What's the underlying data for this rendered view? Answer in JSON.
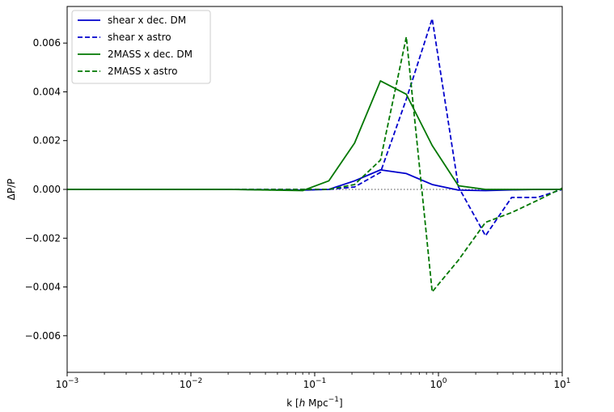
{
  "chart_data": {
    "type": "line",
    "xscale": "log",
    "xlim": [
      0.001,
      10
    ],
    "ylim": [
      -0.0075,
      0.0075
    ],
    "xlabel_parts": [
      "k [",
      "h",
      " Mpc",
      "−1",
      "]"
    ],
    "ylabel": "ΔP/P",
    "xticks": [
      {
        "value": 0.001,
        "base": "10",
        "exp": "−3"
      },
      {
        "value": 0.01,
        "base": "10",
        "exp": "−2"
      },
      {
        "value": 0.1,
        "base": "10",
        "exp": "−1"
      },
      {
        "value": 1,
        "base": "10",
        "exp": "0"
      },
      {
        "value": 10,
        "base": "10",
        "exp": "1"
      }
    ],
    "yticks": [
      {
        "value": 0.006,
        "label": "0.006"
      },
      {
        "value": 0.004,
        "label": "0.004"
      },
      {
        "value": 0.002,
        "label": "0.002"
      },
      {
        "value": 0.0,
        "label": "0.000"
      },
      {
        "value": -0.002,
        "label": "−0.002"
      },
      {
        "value": -0.004,
        "label": "−0.004"
      },
      {
        "value": -0.006,
        "label": "−0.006"
      }
    ],
    "zero_line": {
      "color": "#888888",
      "style": "dotted"
    },
    "legend_position": "top-left",
    "series": [
      {
        "name": "shear x dec. DM",
        "color": "#0000cc",
        "dash": "solid",
        "x": [
          0.001,
          0.02,
          0.08,
          0.13,
          0.21,
          0.34,
          0.55,
          0.89,
          1.45,
          2.4,
          3.9,
          6.3,
          10
        ],
        "y": [
          0.0,
          0.0,
          -3e-05,
          0.0,
          0.00035,
          0.0008,
          0.00065,
          0.0002,
          -3e-05,
          -5e-05,
          -2e-05,
          0.0,
          0.0
        ]
      },
      {
        "name": "shear x astro",
        "color": "#0000cc",
        "dash": "dashed",
        "x": [
          0.001,
          0.02,
          0.08,
          0.13,
          0.21,
          0.34,
          0.55,
          0.89,
          1.45,
          2.4,
          3.9,
          6.3,
          10
        ],
        "y": [
          0.0,
          0.0,
          0.0,
          0.0,
          0.0001,
          0.0007,
          0.0037,
          0.007,
          0.0001,
          -0.0019,
          -0.00033,
          -0.00033,
          0.0
        ]
      },
      {
        "name": "2MASS x dec. DM",
        "color": "#007700",
        "dash": "solid",
        "x": [
          0.001,
          0.02,
          0.08,
          0.13,
          0.21,
          0.34,
          0.55,
          0.89,
          1.45,
          2.4,
          3.9,
          6.3,
          10
        ],
        "y": [
          0.0,
          0.0,
          -5e-05,
          0.00035,
          0.0019,
          0.00445,
          0.0039,
          0.0018,
          0.00015,
          0.0,
          0.0,
          0.0,
          0.0
        ]
      },
      {
        "name": "2MASS x astro",
        "color": "#007700",
        "dash": "dashed",
        "x": [
          0.001,
          0.02,
          0.08,
          0.13,
          0.21,
          0.34,
          0.55,
          0.89,
          1.45,
          2.4,
          3.9,
          6.3,
          10
        ],
        "y": [
          0.0,
          0.0,
          0.0,
          0.0,
          0.0002,
          0.0012,
          0.00625,
          -0.0042,
          -0.0029,
          -0.00135,
          -0.00095,
          -0.00045,
          5e-05
        ]
      }
    ]
  }
}
